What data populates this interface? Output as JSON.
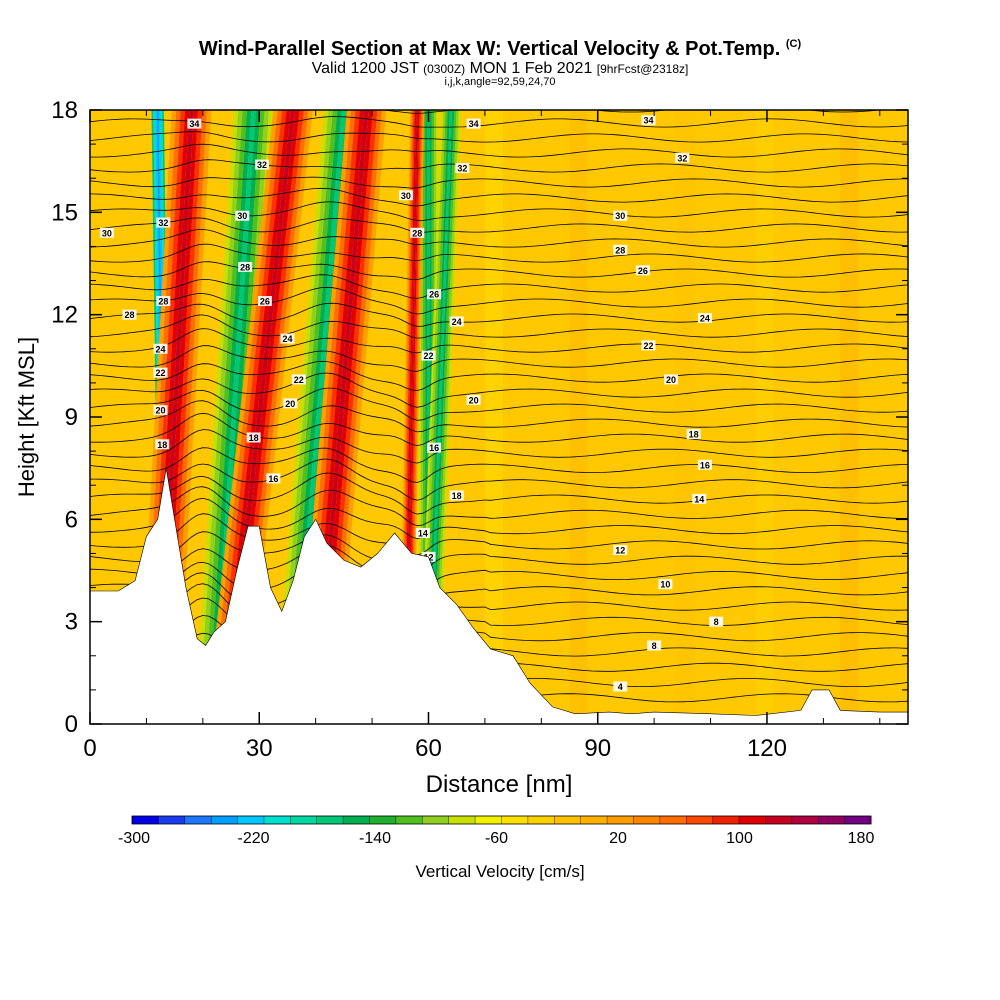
{
  "header": {
    "title": "Wind-Parallel Section at Max W: Vertical Velocity & Pot.Temp.",
    "title_mark": "(C)",
    "subtitle_valid": "Valid 1200 JST",
    "subtitle_utc": "(0300Z)",
    "subtitle_date": "MON 1 Feb 2021",
    "subtitle_fcst": "[9hrFcst@2318z]",
    "subtitle_params": "i,j,k,angle=92,59,24,70"
  },
  "chart_data": {
    "type": "heatmap",
    "xlabel": "Distance [nm]",
    "ylabel": "Height [Kft MSL]",
    "xlim": [
      0,
      145
    ],
    "ylim": [
      0,
      18
    ],
    "xticks": [
      0,
      30,
      60,
      90,
      120
    ],
    "yticks": [
      0,
      3,
      6,
      9,
      12,
      15,
      18
    ],
    "terrain_kft": [
      [
        0,
        3.9
      ],
      [
        5,
        3.9
      ],
      [
        8,
        4.2
      ],
      [
        10,
        5.5
      ],
      [
        12,
        6.0
      ],
      [
        13.5,
        7.5
      ],
      [
        15,
        6.0
      ],
      [
        17,
        4.0
      ],
      [
        19,
        2.5
      ],
      [
        20.5,
        2.3
      ],
      [
        22,
        2.7
      ],
      [
        24,
        3.0
      ],
      [
        26,
        4.5
      ],
      [
        28,
        5.8
      ],
      [
        30,
        5.8
      ],
      [
        32,
        4.0
      ],
      [
        34,
        3.3
      ],
      [
        36,
        4.2
      ],
      [
        38,
        5.5
      ],
      [
        40,
        6.0
      ],
      [
        42,
        5.3
      ],
      [
        45,
        4.8
      ],
      [
        48,
        4.6
      ],
      [
        51,
        5.0
      ],
      [
        54,
        5.6
      ],
      [
        57,
        5.0
      ],
      [
        60,
        4.9
      ],
      [
        62,
        4.0
      ],
      [
        65,
        3.5
      ],
      [
        68,
        2.8
      ],
      [
        71,
        2.2
      ],
      [
        75,
        2.0
      ],
      [
        78,
        1.2
      ],
      [
        82,
        0.5
      ],
      [
        86,
        0.3
      ],
      [
        92,
        0.35
      ],
      [
        96,
        0.3
      ],
      [
        100,
        0.35
      ],
      [
        110,
        0.3
      ],
      [
        118,
        0.25
      ],
      [
        126,
        0.4
      ],
      [
        128,
        1.0
      ],
      [
        131,
        1.0
      ],
      [
        133,
        0.4
      ],
      [
        140,
        0.35
      ],
      [
        145,
        0.35
      ]
    ],
    "vertical_velocity_colorbar": {
      "label": "Vertical Velocity [cm/s]",
      "tick_labels": [
        "-300",
        "-220",
        "-140",
        "-60",
        "20",
        "100",
        "180"
      ],
      "colors": [
        "#0000e6",
        "#1a3cf0",
        "#1e78ff",
        "#00a0ff",
        "#00c8ff",
        "#00e0d0",
        "#00d8a0",
        "#00c878",
        "#00b050",
        "#20b030",
        "#50c020",
        "#90d020",
        "#c8e000",
        "#f0f000",
        "#ffe000",
        "#ffd000",
        "#ffc000",
        "#ffb000",
        "#ff9c00",
        "#ff8400",
        "#ff6c00",
        "#ff4800",
        "#f02000",
        "#e00000",
        "#c80020",
        "#b00040",
        "#900060",
        "#700080"
      ]
    },
    "updraft_bands": [
      {
        "x_top": 18,
        "x_bottom": 12,
        "w_cms": 180
      },
      {
        "x_top": 36,
        "x_bottom": 24,
        "w_cms": 120
      },
      {
        "x_top": 49,
        "x_bottom": 40,
        "w_cms": 120
      },
      {
        "x_top": 58,
        "x_bottom": 56,
        "w_cms": 100
      }
    ],
    "downdraft_bands": [
      {
        "x_top": 12,
        "x_bottom": 13.5,
        "w_cms": -240
      },
      {
        "x_top": 29,
        "x_bottom": 22,
        "w_cms": -140
      },
      {
        "x_top": 45,
        "x_bottom": 36,
        "w_cms": -140
      },
      {
        "x_top": 60,
        "x_bottom": 60,
        "w_cms": -80
      },
      {
        "x_top": 64,
        "x_bottom": 60,
        "w_cms": -60
      }
    ],
    "theta_contour_labels": [
      {
        "text": "34",
        "x": 18.5,
        "y": 17.6
      },
      {
        "text": "34",
        "x": 68,
        "y": 17.6
      },
      {
        "text": "34",
        "x": 99,
        "y": 17.7
      },
      {
        "text": "32",
        "x": 30.5,
        "y": 16.4
      },
      {
        "text": "32",
        "x": 66,
        "y": 16.3
      },
      {
        "text": "32",
        "x": 105,
        "y": 16.6
      },
      {
        "text": "32",
        "x": 13,
        "y": 14.7
      },
      {
        "text": "30",
        "x": 3,
        "y": 14.4
      },
      {
        "text": "30",
        "x": 27,
        "y": 14.9
      },
      {
        "text": "30",
        "x": 56,
        "y": 15.5
      },
      {
        "text": "30",
        "x": 94,
        "y": 14.9
      },
      {
        "text": "28",
        "x": 7,
        "y": 12.0
      },
      {
        "text": "28",
        "x": 13,
        "y": 12.4
      },
      {
        "text": "28",
        "x": 27.5,
        "y": 13.4
      },
      {
        "text": "28",
        "x": 58,
        "y": 14.4
      },
      {
        "text": "28",
        "x": 94,
        "y": 13.9
      },
      {
        "text": "26",
        "x": 31,
        "y": 12.4
      },
      {
        "text": "26",
        "x": 61,
        "y": 12.6
      },
      {
        "text": "26",
        "x": 98,
        "y": 13.3
      },
      {
        "text": "24",
        "x": 12.5,
        "y": 11.0
      },
      {
        "text": "24",
        "x": 35,
        "y": 11.3
      },
      {
        "text": "24",
        "x": 65,
        "y": 11.8
      },
      {
        "text": "24",
        "x": 109,
        "y": 11.9
      },
      {
        "text": "22",
        "x": 12.5,
        "y": 10.3
      },
      {
        "text": "22",
        "x": 37,
        "y": 10.1
      },
      {
        "text": "22",
        "x": 60,
        "y": 10.8
      },
      {
        "text": "22",
        "x": 99,
        "y": 11.1
      },
      {
        "text": "20",
        "x": 12.5,
        "y": 9.2
      },
      {
        "text": "20",
        "x": 35.5,
        "y": 9.4
      },
      {
        "text": "20",
        "x": 68,
        "y": 9.5
      },
      {
        "text": "20",
        "x": 103,
        "y": 10.1
      },
      {
        "text": "18",
        "x": 12.8,
        "y": 8.2
      },
      {
        "text": "18",
        "x": 29,
        "y": 8.4
      },
      {
        "text": "18",
        "x": 65,
        "y": 6.7
      },
      {
        "text": "18",
        "x": 107,
        "y": 8.5
      },
      {
        "text": "16",
        "x": 32.5,
        "y": 7.2
      },
      {
        "text": "16",
        "x": 61,
        "y": 8.1
      },
      {
        "text": "16",
        "x": 109,
        "y": 7.6
      },
      {
        "text": "14",
        "x": 59,
        "y": 5.6
      },
      {
        "text": "14",
        "x": 108,
        "y": 6.6
      },
      {
        "text": "12",
        "x": 60,
        "y": 4.9
      },
      {
        "text": "12",
        "x": 94,
        "y": 5.1
      },
      {
        "text": "10",
        "x": 102,
        "y": 4.1
      },
      {
        "text": "8",
        "x": 111,
        "y": 3.0
      },
      {
        "text": "8",
        "x": 100,
        "y": 2.3
      },
      {
        "text": "4",
        "x": 94,
        "y": 1.1
      }
    ]
  }
}
